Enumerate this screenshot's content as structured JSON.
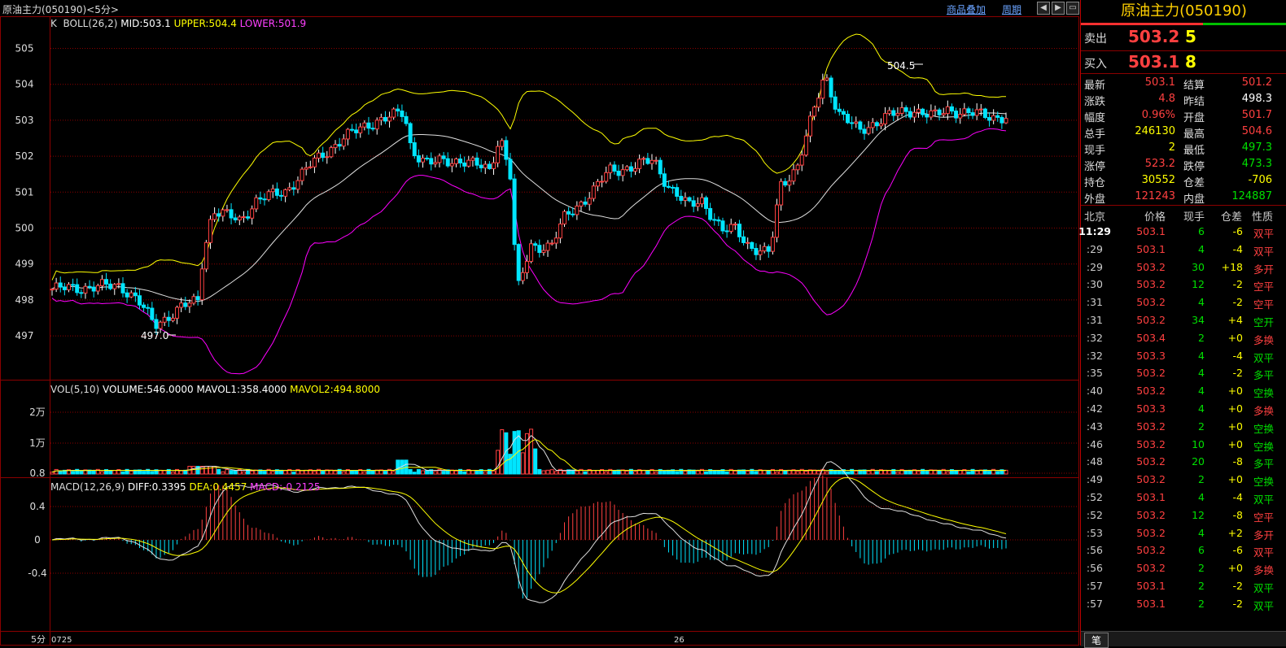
{
  "header": {
    "title": "原油主力(050190)<5分>",
    "link_overlay": "商品叠加",
    "link_period": "周期",
    "btn_left": "◀",
    "btn_right": "▶",
    "btn_min": "▭"
  },
  "indicators": {
    "k_label": "K",
    "boll": "BOLL(26,2)",
    "mid": "MID:503.1",
    "upper": "UPPER:504.4",
    "lower": "LOWER:501.9",
    "vol": "VOL(5,10)",
    "volume": "VOLUME:546.0000",
    "mavol1": "MAVOL1:358.4000",
    "mavol2": "MAVOL2:494.8000",
    "macd": "MACD(12,26,9)",
    "diff": "DIFF:0.3395",
    "dea": "DEA:0.4457",
    "macd_val": "MACD:-0.2125"
  },
  "axis": {
    "price_ticks": [
      "505",
      "504",
      "503",
      "502",
      "501",
      "500",
      "499",
      "498",
      "497"
    ],
    "vol_ticks": [
      "2万",
      "1万"
    ],
    "macd_ticks": [
      "0.8",
      "0.4",
      "0",
      "-0.4"
    ],
    "period_label": "5分",
    "date_start": "0725",
    "date_mid": "26"
  },
  "annotations": {
    "high": "504.5",
    "low": "497.0"
  },
  "colors": {
    "up": "#ff4040",
    "down": "#00e5ff",
    "mid": "#e0e0e0",
    "upper": "#ffff00",
    "lower": "#ff00ff",
    "grid": "#8b0000"
  },
  "quote": {
    "name": "原油主力(050190)",
    "sell_label": "卖出",
    "sell_price": "503.2",
    "sell_vol": "5",
    "buy_label": "买入",
    "buy_price": "503.1",
    "buy_vol": "8",
    "rows": [
      {
        "l1": "最新",
        "v1": "503.1",
        "c1": "red",
        "l2": "结算",
        "v2": "501.2",
        "c2": "red"
      },
      {
        "l1": "涨跌",
        "v1": "4.8",
        "c1": "red",
        "l2": "昨结",
        "v2": "498.3",
        "c2": "white"
      },
      {
        "l1": "幅度",
        "v1": "0.96%",
        "c1": "red",
        "l2": "开盘",
        "v2": "501.7",
        "c2": "red"
      },
      {
        "l1": "总手",
        "v1": "246130",
        "c1": "yellow",
        "l2": "最高",
        "v2": "504.6",
        "c2": "red"
      },
      {
        "l1": "现手",
        "v1": "2",
        "c1": "yellow",
        "l2": "最低",
        "v2": "497.3",
        "c2": "green"
      },
      {
        "l1": "涨停",
        "v1": "523.2",
        "c1": "red",
        "l2": "跌停",
        "v2": "473.3",
        "c2": "green"
      },
      {
        "l1": "持仓",
        "v1": "30552",
        "c1": "yellow",
        "l2": "仓差",
        "v2": "-706",
        "c2": "yellow"
      },
      {
        "l1": "外盘",
        "v1": "121243",
        "c1": "red",
        "l2": "内盘",
        "v2": "124887",
        "c2": "green"
      }
    ]
  },
  "ticks_header": {
    "h1": "北京",
    "h2": "价格",
    "h3": "现手",
    "h4": "仓差",
    "h5": "性质"
  },
  "ticks": [
    {
      "t": "11:29",
      "p": "503.1",
      "v": "6",
      "d": "-6",
      "n": "双平",
      "pc": "red",
      "nc": "red"
    },
    {
      "t": ":29",
      "p": "503.1",
      "v": "4",
      "d": "-4",
      "n": "双平",
      "pc": "red",
      "nc": "red"
    },
    {
      "t": ":29",
      "p": "503.2",
      "v": "30",
      "d": "+18",
      "n": "多开",
      "pc": "red",
      "nc": "red"
    },
    {
      "t": ":30",
      "p": "503.2",
      "v": "12",
      "d": "-2",
      "n": "空平",
      "pc": "red",
      "nc": "red"
    },
    {
      "t": ":31",
      "p": "503.2",
      "v": "4",
      "d": "-2",
      "n": "空平",
      "pc": "red",
      "nc": "red"
    },
    {
      "t": ":31",
      "p": "503.2",
      "v": "34",
      "d": "+4",
      "n": "空开",
      "pc": "red",
      "nc": "green"
    },
    {
      "t": ":32",
      "p": "503.4",
      "v": "2",
      "d": "+0",
      "n": "多换",
      "pc": "red",
      "nc": "red"
    },
    {
      "t": ":32",
      "p": "503.3",
      "v": "4",
      "d": "-4",
      "n": "双平",
      "pc": "red",
      "nc": "green"
    },
    {
      "t": ":35",
      "p": "503.2",
      "v": "4",
      "d": "-2",
      "n": "多平",
      "pc": "red",
      "nc": "green"
    },
    {
      "t": ":40",
      "p": "503.2",
      "v": "4",
      "d": "+0",
      "n": "空换",
      "pc": "red",
      "nc": "green"
    },
    {
      "t": ":42",
      "p": "503.3",
      "v": "4",
      "d": "+0",
      "n": "多换",
      "pc": "red",
      "nc": "red"
    },
    {
      "t": ":43",
      "p": "503.2",
      "v": "2",
      "d": "+0",
      "n": "空换",
      "pc": "red",
      "nc": "green"
    },
    {
      "t": ":46",
      "p": "503.2",
      "v": "10",
      "d": "+0",
      "n": "空换",
      "pc": "red",
      "nc": "green"
    },
    {
      "t": ":48",
      "p": "503.2",
      "v": "20",
      "d": "-8",
      "n": "多平",
      "pc": "red",
      "nc": "green"
    },
    {
      "t": ":49",
      "p": "503.2",
      "v": "2",
      "d": "+0",
      "n": "空换",
      "pc": "red",
      "nc": "green"
    },
    {
      "t": ":52",
      "p": "503.1",
      "v": "4",
      "d": "-4",
      "n": "双平",
      "pc": "red",
      "nc": "green"
    },
    {
      "t": ":52",
      "p": "503.2",
      "v": "12",
      "d": "-8",
      "n": "空平",
      "pc": "red",
      "nc": "red"
    },
    {
      "t": ":53",
      "p": "503.2",
      "v": "4",
      "d": "+2",
      "n": "多开",
      "pc": "red",
      "nc": "red"
    },
    {
      "t": ":56",
      "p": "503.2",
      "v": "6",
      "d": "-6",
      "n": "双平",
      "pc": "red",
      "nc": "red"
    },
    {
      "t": ":56",
      "p": "503.2",
      "v": "2",
      "d": "+0",
      "n": "多换",
      "pc": "red",
      "nc": "red"
    },
    {
      "t": ":57",
      "p": "503.1",
      "v": "2",
      "d": "-2",
      "n": "双平",
      "pc": "red",
      "nc": "green"
    },
    {
      "t": ":57",
      "p": "503.1",
      "v": "2",
      "d": "-2",
      "n": "双平",
      "pc": "red",
      "nc": "green"
    }
  ],
  "footer": {
    "tab": "笔"
  }
}
